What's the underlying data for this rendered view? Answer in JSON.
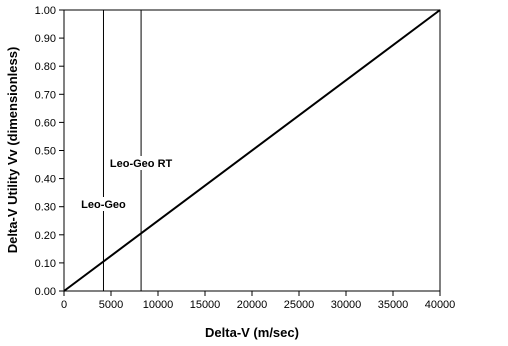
{
  "chart_data": {
    "type": "line",
    "title": "",
    "xlabel": "Delta-V (m/sec)",
    "ylabel": "Delta-V Utility Vv (dimensionless)",
    "xlim": [
      0,
      40000
    ],
    "ylim": [
      0,
      1
    ],
    "x_ticks": [
      0,
      5000,
      10000,
      15000,
      20000,
      25000,
      30000,
      35000,
      40000
    ],
    "x_tick_labels": [
      "0",
      "5000",
      "10000",
      "15000",
      "20000",
      "25000",
      "30000",
      "35000",
      "40000"
    ],
    "y_ticks": [
      0,
      0.1,
      0.2,
      0.3,
      0.4,
      0.5,
      0.6,
      0.7,
      0.8,
      0.9,
      1.0
    ],
    "y_tick_labels": [
      "0.00",
      "0.10",
      "0.20",
      "0.30",
      "0.40",
      "0.50",
      "0.60",
      "0.70",
      "0.80",
      "0.90",
      "1.00"
    ],
    "grid": false,
    "series": [
      {
        "x": [
          0,
          40000
        ],
        "y": [
          0,
          1
        ]
      }
    ],
    "vertical_markers": [
      {
        "x": 4200,
        "label": "Leo-Geo"
      },
      {
        "x": 8200,
        "label": "Leo-Geo RT"
      }
    ]
  }
}
